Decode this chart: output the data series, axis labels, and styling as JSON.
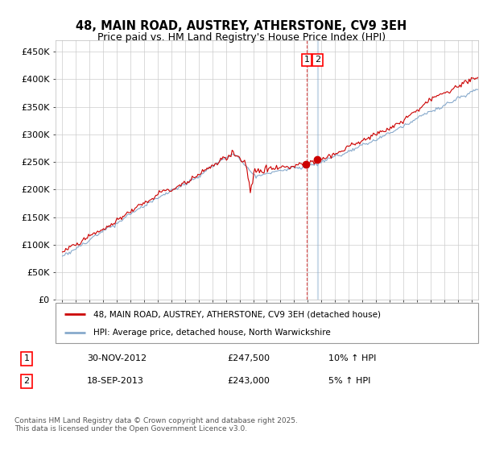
{
  "title": "48, MAIN ROAD, AUSTREY, ATHERSTONE, CV9 3EH",
  "subtitle": "Price paid vs. HM Land Registry's House Price Index (HPI)",
  "ylabel_ticks": [
    "£0",
    "£50K",
    "£100K",
    "£150K",
    "£200K",
    "£250K",
    "£300K",
    "£350K",
    "£400K",
    "£450K"
  ],
  "ytick_values": [
    0,
    50000,
    100000,
    150000,
    200000,
    250000,
    300000,
    350000,
    400000,
    450000
  ],
  "ylim": [
    0,
    470000
  ],
  "xlim_start": 1994.5,
  "xlim_end": 2025.5,
  "line1_color": "#cc0000",
  "line2_color": "#88aacc",
  "line1_label": "48, MAIN ROAD, AUSTREY, ATHERSTONE, CV9 3EH (detached house)",
  "line2_label": "HPI: Average price, detached house, North Warwickshire",
  "sale1_date": "30-NOV-2012",
  "sale1_price": "£247,500",
  "sale1_hpi": "10% ↑ HPI",
  "sale1_year": 2012.92,
  "sale2_date": "18-SEP-2013",
  "sale2_price": "£243,000",
  "sale2_hpi": "5% ↑ HPI",
  "sale2_year": 2013.72,
  "footnote": "Contains HM Land Registry data © Crown copyright and database right 2025.\nThis data is licensed under the Open Government Licence v3.0.",
  "background_color": "#ffffff",
  "grid_color": "#cccccc"
}
